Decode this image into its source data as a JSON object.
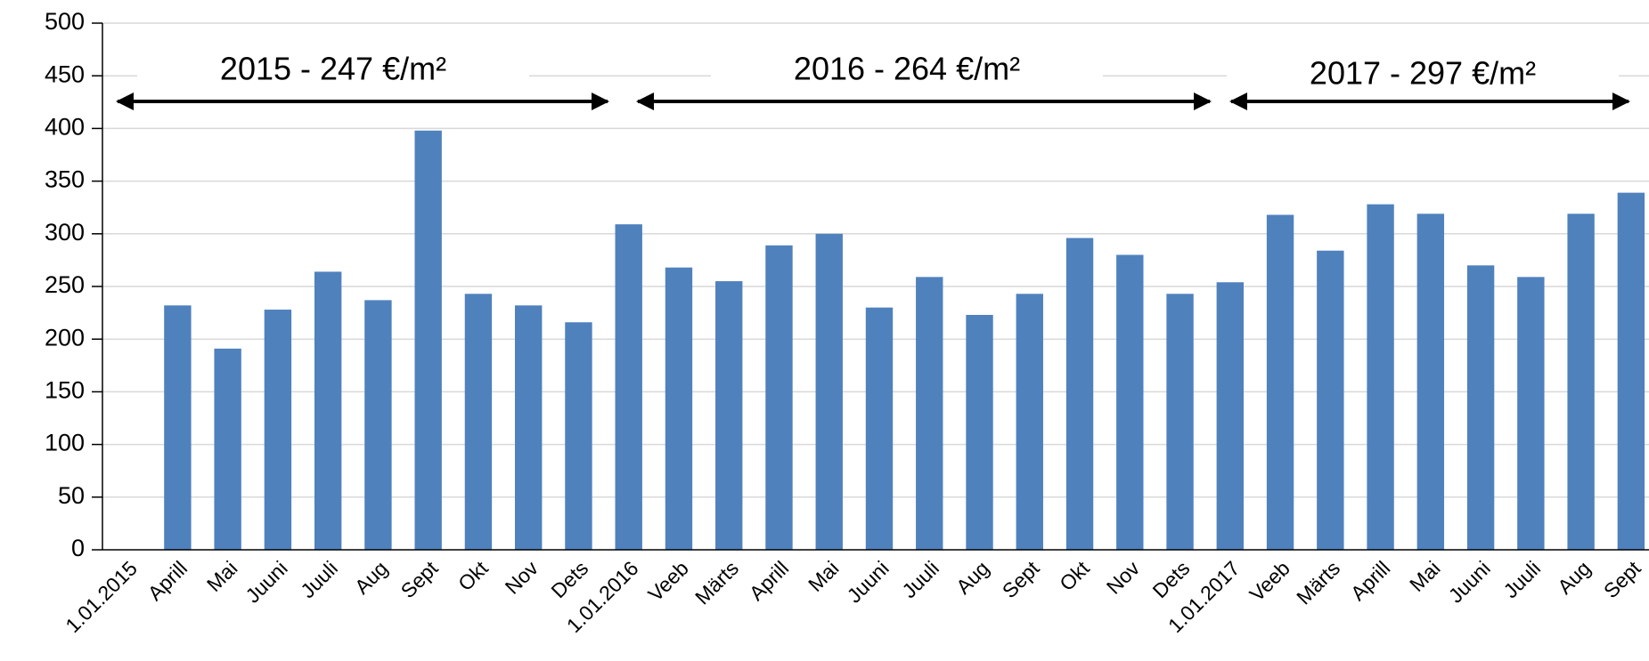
{
  "chart_data": {
    "type": "bar",
    "categories": [
      "1.01.2015",
      "Aprill",
      "Mai",
      "Juuni",
      "Juuli",
      "Aug",
      "Sept",
      "Okt",
      "Nov",
      "Dets",
      "1.01.2016",
      "Veeb",
      "Märts",
      "Aprill",
      "Mai",
      "Juuni",
      "Juuli",
      "Aug",
      "Sept",
      "Okt",
      "Nov",
      "Dets",
      "1.01.2017",
      "Veeb",
      "Märts",
      "Aprill",
      "Mai",
      "Juuni",
      "Juuli",
      "Aug",
      "Sept"
    ],
    "values": [
      null,
      232,
      191,
      228,
      264,
      237,
      398,
      243,
      232,
      216,
      309,
      268,
      255,
      289,
      300,
      230,
      259,
      223,
      243,
      296,
      280,
      243,
      254,
      318,
      284,
      328,
      319,
      270,
      259,
      319,
      339
    ],
    "color": "#4f81bd",
    "ylim": [
      0,
      500
    ],
    "yticks": [
      0,
      50,
      100,
      150,
      200,
      250,
      300,
      350,
      400,
      450,
      500
    ],
    "grid": true,
    "annotations": [
      "2015 - 247 €/m²",
      "2016 - 264 €/m²",
      "2017 - 297 €/m²"
    ]
  }
}
